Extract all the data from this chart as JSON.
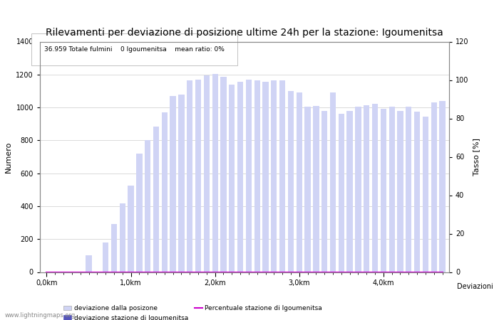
{
  "title": "Rilevamenti per deviazione di posizione ultime 24h per la stazione: Igoumenitsa",
  "subtitle": "36.959 Totale fulmini    0 Igoumenitsa    mean ratio: 0%",
  "ylabel_left": "Numero",
  "ylabel_right": "Tasso [%]",
  "xlabel": "Deviazioni",
  "ylim_left": [
    0,
    1400
  ],
  "ylim_right": [
    0,
    120
  ],
  "yticks_left": [
    0,
    200,
    400,
    600,
    800,
    1000,
    1200,
    1400
  ],
  "yticks_right": [
    0,
    20,
    40,
    60,
    80,
    100,
    120
  ],
  "bar_color_light": "#d0d4f5",
  "bar_color_dark": "#5555bb",
  "line_color": "#cc00cc",
  "bar_values": [
    0,
    2,
    2,
    0,
    0,
    100,
    2,
    180,
    290,
    415,
    525,
    720,
    800,
    885,
    970,
    1070,
    1080,
    1165,
    1170,
    1195,
    1205,
    1185,
    1140,
    1155,
    1170,
    1165,
    1155,
    1165,
    1165,
    1100,
    1090,
    1005,
    1010,
    980,
    1090,
    960,
    980,
    1005,
    1015,
    1020,
    990,
    1005,
    980,
    1005,
    975,
    945,
    1030,
    1040
  ],
  "station_bar_values": [
    0,
    0,
    0,
    0,
    0,
    0,
    0,
    0,
    0,
    0,
    0,
    0,
    0,
    0,
    0,
    0,
    0,
    0,
    0,
    0,
    0,
    0,
    0,
    0,
    0,
    0,
    0,
    0,
    0,
    0,
    0,
    0,
    0,
    0,
    0,
    0,
    0,
    0,
    0,
    0,
    0,
    0,
    0,
    0,
    0,
    0,
    0,
    0
  ],
  "percentage_values": [
    0,
    0,
    0,
    0,
    0,
    0,
    0,
    0,
    0,
    0,
    0,
    0,
    0,
    0,
    0,
    0,
    0,
    0,
    0,
    0,
    0,
    0,
    0,
    0,
    0,
    0,
    0,
    0,
    0,
    0,
    0,
    0,
    0,
    0,
    0,
    0,
    0,
    0,
    0,
    0,
    0,
    0,
    0,
    0,
    0,
    0,
    0,
    0
  ],
  "xtick_km_positions": [
    0,
    10,
    20,
    30,
    40
  ],
  "xtick_km_labels": [
    "0,0km",
    "1,0km",
    "2,0km",
    "3,0km",
    "4,0km"
  ],
  "background_color": "#ffffff",
  "grid_color": "#cccccc",
  "title_fontsize": 10,
  "axis_fontsize": 8,
  "tick_fontsize": 7,
  "watermark": "www.lightningmaps.org",
  "legend_label1": "deviazione dalla posizone",
  "legend_label2": "deviazione stazione di Igoumenitsa",
  "legend_label3": "Percentuale stazione di Igoumenitsa"
}
